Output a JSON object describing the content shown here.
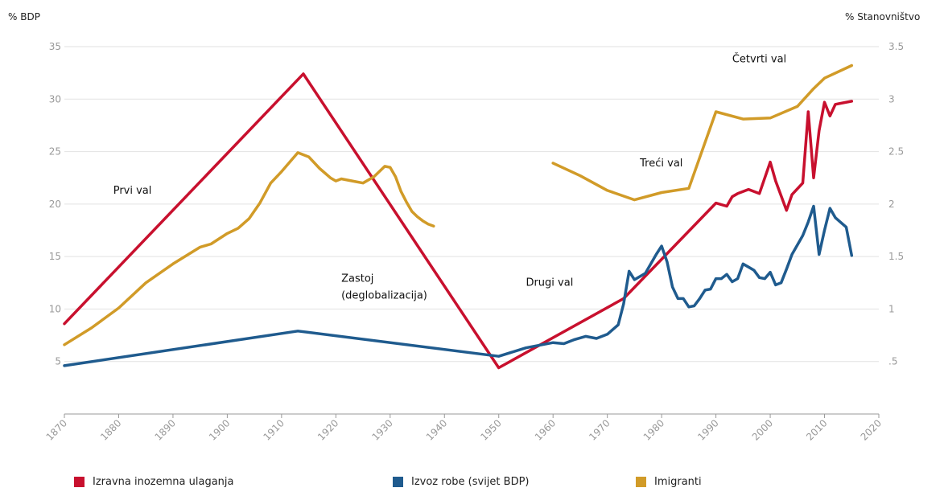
{
  "chart_data": {
    "type": "line",
    "y_left_label": "% BDP",
    "y_right_label": "% Stanovništvo",
    "xlim": [
      1870,
      2020
    ],
    "ylim_left": [
      0,
      35
    ],
    "ylim_right": [
      0,
      3.5
    ],
    "x_ticks": [
      "1870",
      "1880",
      "1890",
      "1900",
      "1910",
      "1920",
      "1930",
      "1940",
      "1950",
      "1960",
      "1970",
      "1980",
      "1990",
      "2000",
      "2010",
      "2020"
    ],
    "y_left_ticks": [
      "5",
      "10",
      "15",
      "20",
      "25",
      "30",
      "35"
    ],
    "y_right_ticks": [
      ".5",
      "1",
      "1.5",
      "2",
      "2.5",
      "3",
      "3.5"
    ],
    "grid": true,
    "legend_position": "bottom",
    "series": [
      {
        "name": "Izravna inozemna ulaganja",
        "color": "#c8102e",
        "axis": "left",
        "x": [
          1870,
          1914,
          1950,
          1973,
          1990,
          1992,
          1993,
          1994,
          1996,
          1998,
          2000,
          2001,
          2003,
          2004,
          2006,
          2007,
          2008,
          2009,
          2010,
          2011,
          2012,
          2015
        ],
        "y": [
          8.6,
          32.4,
          4.4,
          11,
          20.1,
          19.8,
          20.7,
          21.0,
          21.4,
          21.0,
          24.0,
          22.2,
          19.4,
          20.9,
          22.0,
          28.8,
          22.5,
          27.0,
          29.7,
          28.4,
          29.5,
          29.8
        ]
      },
      {
        "name": "Izvoz robe (svijet BDP)",
        "color": "#1f5b8e",
        "axis": "left",
        "x": [
          1870,
          1913,
          1950,
          1955,
          1960,
          1962,
          1964,
          1966,
          1968,
          1970,
          1972,
          1973,
          1974,
          1975,
          1977,
          1979,
          1980,
          1981,
          1982,
          1983,
          1984,
          1985,
          1986,
          1987,
          1988,
          1989,
          1990,
          1991,
          1992,
          1993,
          1994,
          1995,
          1996,
          1997,
          1998,
          1999,
          2000,
          2001,
          2002,
          2003,
          2004,
          2006,
          2007,
          2008,
          2009,
          2010,
          2011,
          2012,
          2014,
          2015
        ],
        "y": [
          4.6,
          7.9,
          5.5,
          6.3,
          6.8,
          6.7,
          7.1,
          7.4,
          7.2,
          7.6,
          8.5,
          10.5,
          13.6,
          12.8,
          13.4,
          15.2,
          16.0,
          14.5,
          12.1,
          11.0,
          11.0,
          10.2,
          10.3,
          11.0,
          11.8,
          11.9,
          12.9,
          12.9,
          13.3,
          12.6,
          12.9,
          14.3,
          14.0,
          13.7,
          13.0,
          12.9,
          13.5,
          12.3,
          12.5,
          13.8,
          15.2,
          17.0,
          18.3,
          19.8,
          15.2,
          17.5,
          19.6,
          18.7,
          17.8,
          15.1
        ]
      },
      {
        "name": "Imigranti",
        "color": "#d19b28",
        "axis": "right",
        "segments": [
          {
            "x": [
              1870,
              1875,
              1880,
              1885,
              1890,
              1895,
              1897,
              1900,
              1902,
              1904,
              1906,
              1908,
              1910,
              1913,
              1915,
              1917,
              1919,
              1920,
              1921,
              1923,
              1925,
              1927,
              1929,
              1930,
              1931,
              1932,
              1933,
              1934,
              1935,
              1936,
              1937,
              1938
            ],
            "y": [
              0.66,
              0.82,
              1.01,
              1.25,
              1.43,
              1.59,
              1.62,
              1.72,
              1.77,
              1.86,
              2.01,
              2.2,
              2.31,
              2.49,
              2.45,
              2.34,
              2.25,
              2.22,
              2.24,
              2.22,
              2.2,
              2.26,
              2.36,
              2.35,
              2.26,
              2.12,
              2.02,
              1.93,
              1.88,
              1.84,
              1.81,
              1.79
            ]
          },
          {
            "x": [
              1960,
              1965,
              1970,
              1975,
              1980,
              1985,
              1990,
              1995,
              2000,
              2005,
              2008,
              2010,
              2015
            ],
            "y": [
              2.39,
              2.27,
              2.13,
              2.04,
              2.11,
              2.15,
              2.88,
              2.81,
              2.82,
              2.93,
              3.1,
              3.2,
              3.32
            ]
          }
        ]
      }
    ],
    "annotations": [
      {
        "text": "Prvi val",
        "x": 1879,
        "y": 21
      },
      {
        "text": "Zastoj",
        "x": 1921,
        "y": 12.6
      },
      {
        "text": "(deglobalizacija)",
        "x": 1921,
        "y": 11
      },
      {
        "text": "Drugi val",
        "x": 1955,
        "y": 12.2
      },
      {
        "text": "Treći val",
        "x": 1976,
        "y": 23.6
      },
      {
        "text": "Četvrti val",
        "x": 1993,
        "y": 33.5
      }
    ]
  }
}
